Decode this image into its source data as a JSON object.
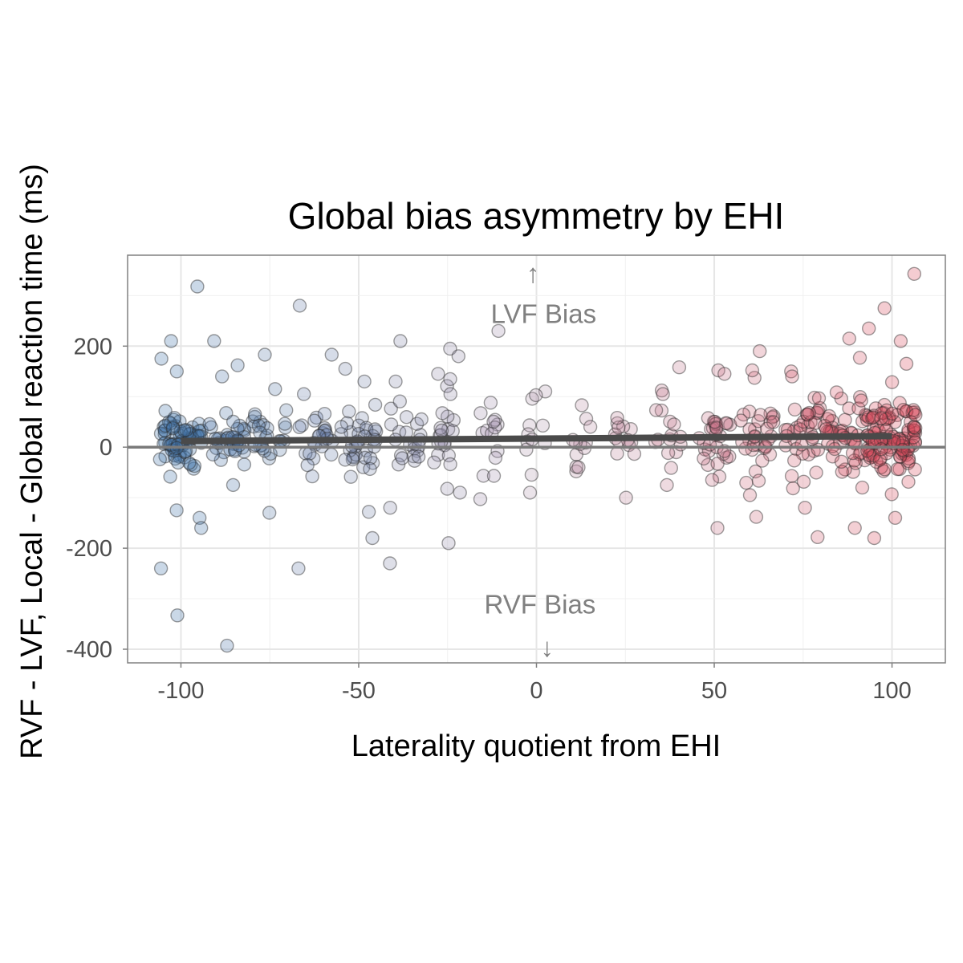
{
  "chart_data": {
    "type": "scatter",
    "title": "Global bias asymmetry by EHI",
    "xlabel": "Laterality quotient from EHI",
    "ylabel": "RVF - LVF, Local - Global reaction time (ms)",
    "xlim": [
      -115,
      115
    ],
    "ylim": [
      -427,
      380
    ],
    "x_ticks": [
      -100,
      -50,
      0,
      50,
      100
    ],
    "x_tick_labels": [
      "-100",
      "-50",
      "0",
      "50",
      "100"
    ],
    "y_ticks": [
      -400,
      -200,
      0,
      200
    ],
    "y_tick_labels": [
      "-400",
      "-200",
      "0",
      "200"
    ],
    "grid": true,
    "hline_y": 0,
    "trend_line": {
      "x": [
        -100,
        100
      ],
      "y": [
        12,
        22
      ]
    },
    "annotations": [
      {
        "text": "LVF Bias",
        "x": 2,
        "y": 265,
        "arrow": "↑",
        "arrow_x": -1,
        "arrow_y": 345
      },
      {
        "text": "RVF Bias",
        "x": 1,
        "y": -310,
        "arrow": "↓",
        "arrow_x": 3,
        "arrow_y": -395
      }
    ],
    "colors": {
      "left": "#3f73a8",
      "right": "#d9475a",
      "mid": "#b59ab0",
      "trend": "#4a4a4a",
      "zero_line": "#7a7a7a"
    },
    "columns": [
      {
        "x": -100,
        "n": 70,
        "spread": 28,
        "width": 6,
        "outliers": [
          318,
          210,
          175,
          150,
          -125,
          -140,
          -160,
          -240,
          -333
        ]
      },
      {
        "x": -87,
        "n": 36,
        "spread": 28,
        "width": 5,
        "outliers": [
          210,
          162,
          140,
          -75,
          -393
        ]
      },
      {
        "x": -75,
        "n": 26,
        "spread": 30,
        "width": 5,
        "outliers": [
          183,
          115,
          -130
        ]
      },
      {
        "x": -62,
        "n": 24,
        "spread": 30,
        "width": 5,
        "outliers": [
          280,
          183,
          105,
          -240
        ]
      },
      {
        "x": -50,
        "n": 36,
        "spread": 32,
        "width": 5,
        "outliers": [
          155,
          130,
          -128,
          -180
        ]
      },
      {
        "x": -37,
        "n": 22,
        "spread": 40,
        "width": 5,
        "outliers": [
          210,
          130,
          -120,
          -230
        ]
      },
      {
        "x": -25,
        "n": 20,
        "spread": 40,
        "width": 4,
        "outliers": [
          195,
          180,
          145,
          105,
          -90,
          -190
        ]
      },
      {
        "x": -13,
        "n": 12,
        "spread": 35,
        "width": 3,
        "outliers": [
          230,
          88,
          -103
        ]
      },
      {
        "x": 0,
        "n": 10,
        "spread": 35,
        "width": 3,
        "outliers": [
          103,
          -90
        ]
      },
      {
        "x": 13,
        "n": 10,
        "spread": 35,
        "width": 3,
        "outliers": [
          83,
          -40
        ]
      },
      {
        "x": 25,
        "n": 12,
        "spread": 30,
        "width": 3,
        "outliers": [
          58,
          -100
        ]
      },
      {
        "x": 37,
        "n": 14,
        "spread": 35,
        "width": 4,
        "outliers": [
          158,
          105,
          -75
        ]
      },
      {
        "x": 50,
        "n": 28,
        "spread": 35,
        "width": 5,
        "outliers": [
          152,
          145,
          -65,
          -160
        ]
      },
      {
        "x": 62,
        "n": 32,
        "spread": 38,
        "width": 5,
        "outliers": [
          190,
          152,
          -95,
          -138
        ]
      },
      {
        "x": 75,
        "n": 38,
        "spread": 40,
        "width": 5,
        "outliers": [
          150,
          140,
          -120,
          -178
        ]
      },
      {
        "x": 87,
        "n": 50,
        "spread": 35,
        "width": 6,
        "outliers": [
          215,
          177,
          -80,
          -160
        ]
      },
      {
        "x": 100,
        "n": 110,
        "spread": 38,
        "width": 7,
        "outliers": [
          343,
          275,
          235,
          210,
          165,
          -140,
          -180
        ]
      }
    ]
  }
}
